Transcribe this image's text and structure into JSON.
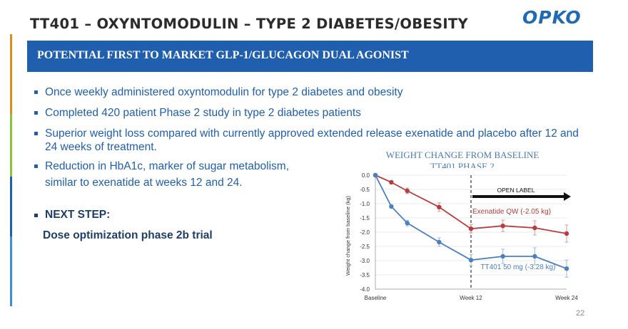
{
  "slide": {
    "title": "TT401 – OXYNTOMODULIN – TYPE 2 DIABETES/OBESITY",
    "logo": "OPKO",
    "banner": "POTENTIAL FIRST TO MARKET GLP-1/GLUCAGON DUAL AGONIST",
    "bullets": [
      "Once weekly administered oxyntomodulin for type 2 diabetes and obesity",
      "Completed 420 patient Phase 2 study in type 2 diabetes patients",
      "Superior weight loss compared with currently approved extended release exenatide and placebo after 12 and 24 weeks of treatment.",
      "Reduction in HbA1c, marker of sugar metabolism, similar to exenatide at weeks 12 and 24."
    ],
    "next_step": "NEXT STEP:",
    "next_step_detail": "Dose optimization phase 2b trial",
    "page_number": "22",
    "colors": {
      "primary": "#1f5fad",
      "title_text": "#2b2b2b",
      "accent_red": "#b83c3c",
      "accent_blue": "#4b7fc0"
    },
    "side_bar_colors": [
      "#e08a1e",
      "#8cc63f",
      "#1f5fad",
      "#3a8fd6"
    ]
  },
  "chart_data": {
    "type": "line",
    "title": "WEIGHT CHANGE FROM BASELINE",
    "subtitle": "TT401 PHASE 2",
    "ylabel": "Weight change from baseline (kg)",
    "xlabel": "",
    "ylim": [
      -4.0,
      0.0
    ],
    "yticks": [
      "0.0",
      "-0.5",
      "-1.0",
      "-1.5",
      "-2.0",
      "-2.5",
      "-3.0",
      "-3.5",
      "-4.0"
    ],
    "xticks": [
      "Baseline",
      "Week 12",
      "Week 24"
    ],
    "x": [
      0,
      2,
      4,
      6,
      8,
      12,
      14,
      18,
      22,
      24
    ],
    "annotation": "OPEN LABEL",
    "series": [
      {
        "name": "Exenatide QW (-2.05 kg)",
        "color": "#b83c3c",
        "x": [
          0,
          2,
          4,
          8,
          12,
          16,
          20,
          24
        ],
        "values": [
          0.0,
          -0.25,
          -0.55,
          -1.12,
          -1.88,
          -1.78,
          -1.85,
          -2.05
        ],
        "err": [
          0.0,
          0.05,
          0.1,
          0.15,
          0.15,
          0.2,
          0.25,
          0.3
        ]
      },
      {
        "name": "TT401 50 mg (-3.28 kg)",
        "color": "#4b7fc0",
        "x": [
          0,
          2,
          4,
          8,
          12,
          16,
          20,
          24
        ],
        "values": [
          0.0,
          -1.1,
          -1.68,
          -2.35,
          -2.98,
          -2.85,
          -2.85,
          -3.28
        ],
        "err": [
          0.0,
          0.05,
          0.1,
          0.15,
          0.2,
          0.25,
          0.3,
          0.3
        ]
      }
    ]
  }
}
